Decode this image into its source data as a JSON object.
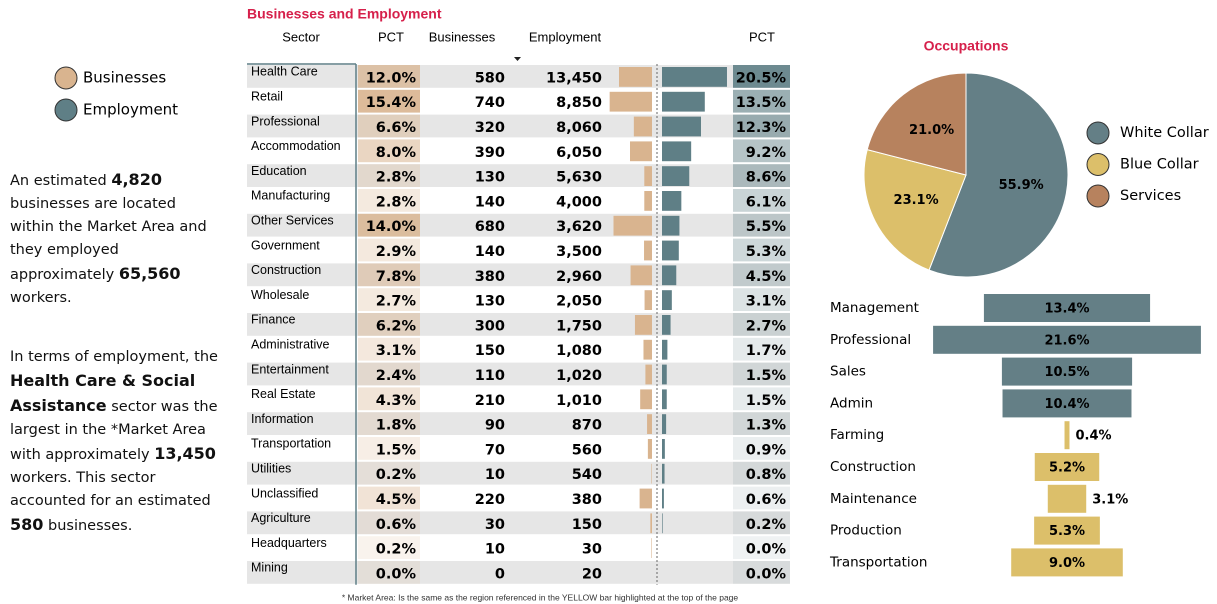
{
  "legend": {
    "items": [
      "Businesses",
      "Employment"
    ],
    "colors": [
      "#d9b48f",
      "#5f7f86"
    ]
  },
  "summary": [
    [
      {
        "text": "An estimated ",
        "bold": false
      },
      {
        "text": "4,820",
        "bold": true
      },
      {
        "text": " businesses are located within the Market Area and they employed approximately ",
        "bold": false
      },
      {
        "text": "65,560",
        "bold": true
      },
      {
        "text": " workers.",
        "bold": false
      }
    ],
    [
      {
        "text": "In terms of employment, the ",
        "bold": false
      },
      {
        "text": "Health Care & Social Assistance",
        "bold": true
      },
      {
        "text": " sector was the largest in the *Market Area with approximately ",
        "bold": false
      },
      {
        "text": "13,450",
        "bold": true
      },
      {
        "text": " workers. This sector accounted for an estimated ",
        "bold": false
      },
      {
        "text": "580",
        "bold": true
      },
      {
        "text": " businesses.",
        "bold": false
      }
    ]
  ],
  "table": {
    "title": "Businesses and Employment",
    "columns": [
      "Sector",
      "PCT",
      "Businesses",
      "Employment",
      "PCT"
    ],
    "sectors": [
      "Health Care",
      "Retail",
      "Professional",
      "Accommodation",
      "Education",
      "Manufacturing",
      "Other Services",
      "Government",
      "Construction",
      "Wholesale",
      "Finance",
      "Administrative",
      "Entertainment",
      "Real Estate",
      "Information",
      "Transportation",
      "Utilities",
      "Unclassified",
      "Agriculture",
      "Headquarters",
      "Mining"
    ],
    "business_pct": [
      12.0,
      15.4,
      6.6,
      8.0,
      2.8,
      2.8,
      14.0,
      2.9,
      7.8,
      2.7,
      6.2,
      3.1,
      2.4,
      4.3,
      1.8,
      1.5,
      0.2,
      4.5,
      0.6,
      0.2,
      0.0
    ],
    "business_pct_labels": [
      "12.0%",
      "15.4%",
      "6.6%",
      "8.0%",
      "2.8%",
      "2.8%",
      "14.0%",
      "2.9%",
      "7.8%",
      "2.7%",
      "6.2%",
      "3.1%",
      "2.4%",
      "4.3%",
      "1.8%",
      "1.5%",
      "0.2%",
      "4.5%",
      "0.6%",
      "0.2%",
      "0.0%"
    ],
    "businesses": [
      580,
      740,
      320,
      390,
      130,
      140,
      680,
      140,
      380,
      130,
      300,
      150,
      110,
      210,
      90,
      70,
      10,
      220,
      30,
      10,
      0
    ],
    "employment": [
      "13,450",
      "8,850",
      "8,060",
      "6,050",
      "5,630",
      "4,000",
      "3,620",
      "3,500",
      "2,960",
      "2,050",
      "1,750",
      "1,080",
      "1,020",
      "1,010",
      "870",
      "560",
      "540",
      "380",
      "150",
      "30",
      "20"
    ],
    "employment_pct": [
      20.5,
      13.5,
      12.3,
      9.2,
      8.6,
      6.1,
      5.5,
      5.3,
      4.5,
      3.1,
      2.7,
      1.7,
      1.5,
      1.5,
      1.3,
      0.9,
      0.8,
      0.6,
      0.2,
      0.0,
      0.0
    ],
    "employment_pct_labels": [
      "20.5%",
      "13.5%",
      "12.3%",
      "9.2%",
      "8.6%",
      "6.1%",
      "5.5%",
      "5.3%",
      "4.5%",
      "3.1%",
      "2.7%",
      "1.7%",
      "1.5%",
      "1.5%",
      "1.3%",
      "0.9%",
      "0.8%",
      "0.6%",
      "0.2%",
      "0.0%",
      "0.0%"
    ],
    "footnote": "* Market Area: Is the same as the region referenced in the YELLOW bar highlighted at the top of the page"
  },
  "chart_data": [
    {
      "type": "pie",
      "title": "Occupations",
      "categories": [
        "White Collar",
        "Blue Collar",
        "Services"
      ],
      "values": [
        55.9,
        23.1,
        21.0
      ],
      "value_labels": [
        "55.9%",
        "23.1%",
        "21.0%"
      ],
      "colors": [
        "#647f86",
        "#dcbf6a",
        "#b7825e"
      ]
    },
    {
      "type": "bar",
      "categories": [
        "Management",
        "Professional",
        "Sales",
        "Admin",
        "Farming",
        "Construction",
        "Maintenance",
        "Production",
        "Transportation"
      ],
      "values": [
        13.4,
        21.6,
        10.5,
        10.4,
        0.4,
        5.2,
        3.1,
        5.3,
        9.0
      ],
      "value_labels": [
        "13.4%",
        "21.6%",
        "10.5%",
        "10.4%",
        "0.4%",
        "5.2%",
        "3.1%",
        "5.3%",
        "9.0%"
      ],
      "colors": [
        "#647f86",
        "#647f86",
        "#647f86",
        "#647f86",
        "#dcbf6a",
        "#dcbf6a",
        "#dcbf6a",
        "#dcbf6a",
        "#dcbf6a"
      ]
    }
  ]
}
